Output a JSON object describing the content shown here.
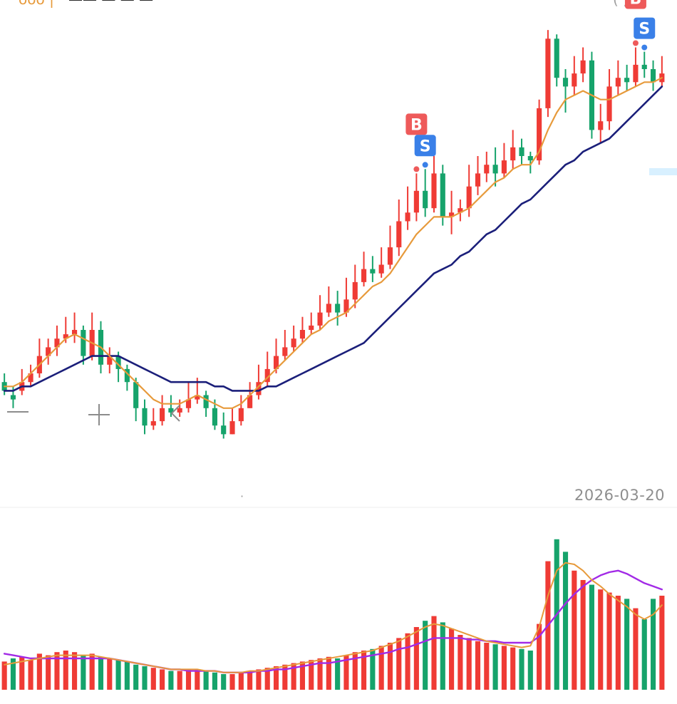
{
  "chart_data": [
    {
      "type": "candlestick",
      "xlabel": "",
      "ylabel": "",
      "x_axis_end_label": "2026-03-20",
      "ylim": [
        0,
        100
      ],
      "colors": {
        "up": "#ef3b35",
        "down": "#16a36b",
        "ma_short": "#e79a3b",
        "ma_long": "#1b1f7a",
        "buy_signal": "#ee5a5a",
        "sell_signal": "#3a80e8"
      },
      "series": [
        {
          "name": "candles",
          "ohlc": [
            [
              18,
              16,
              20,
              15
            ],
            [
              15,
              14,
              17,
              12
            ],
            [
              16,
              18,
              21,
              15
            ],
            [
              18,
              20,
              22,
              17
            ],
            [
              20,
              24,
              28,
              19
            ],
            [
              24,
              26,
              28,
              22
            ],
            [
              26,
              28,
              31,
              24
            ],
            [
              28,
              29,
              33,
              27
            ],
            [
              29,
              30,
              34,
              27
            ],
            [
              30,
              24,
              31,
              22
            ],
            [
              24,
              30,
              34,
              23
            ],
            [
              30,
              22,
              32,
              20
            ],
            [
              22,
              24,
              26,
              20
            ],
            [
              24,
              21,
              25,
              18
            ],
            [
              21,
              18,
              22,
              16
            ],
            [
              18,
              12,
              19,
              9
            ],
            [
              12,
              8,
              14,
              6
            ],
            [
              8,
              9,
              12,
              7
            ],
            [
              9,
              12,
              15,
              8
            ],
            [
              12,
              11,
              15,
              10
            ],
            [
              11,
              12,
              14,
              10
            ],
            [
              12,
              14,
              18,
              11
            ],
            [
              14,
              15,
              19,
              13
            ],
            [
              15,
              12,
              16,
              10
            ],
            [
              12,
              8,
              14,
              7
            ],
            [
              8,
              6,
              11,
              5
            ],
            [
              6,
              9,
              12,
              6
            ],
            [
              9,
              12,
              15,
              8
            ],
            [
              12,
              15,
              18,
              12
            ],
            [
              15,
              18,
              22,
              14
            ],
            [
              18,
              21,
              25,
              17
            ],
            [
              21,
              24,
              28,
              20
            ],
            [
              24,
              26,
              30,
              23
            ],
            [
              26,
              28,
              31,
              25
            ],
            [
              28,
              30,
              33,
              27
            ],
            [
              30,
              31,
              34,
              29
            ],
            [
              31,
              34,
              38,
              30
            ],
            [
              34,
              36,
              40,
              33
            ],
            [
              36,
              34,
              39,
              31
            ],
            [
              34,
              37,
              42,
              33
            ],
            [
              37,
              41,
              45,
              35
            ],
            [
              41,
              44,
              48,
              40
            ],
            [
              44,
              43,
              47,
              41
            ],
            [
              43,
              45,
              49,
              42
            ],
            [
              45,
              49,
              54,
              44
            ],
            [
              49,
              55,
              60,
              47
            ],
            [
              55,
              57,
              63,
              53
            ],
            [
              57,
              62,
              66,
              55
            ],
            [
              62,
              58,
              67,
              56
            ],
            [
              58,
              66,
              70,
              57
            ],
            [
              66,
              56,
              68,
              54
            ],
            [
              56,
              57,
              62,
              52
            ],
            [
              57,
              58,
              60,
              55
            ],
            [
              58,
              63,
              68,
              56
            ],
            [
              63,
              66,
              70,
              61
            ],
            [
              66,
              68,
              71,
              64
            ],
            [
              68,
              66,
              72,
              63
            ],
            [
              66,
              69,
              73,
              65
            ],
            [
              69,
              72,
              76,
              67
            ],
            [
              72,
              70,
              74,
              68
            ],
            [
              70,
              69,
              71,
              66
            ],
            [
              69,
              81,
              83,
              68
            ],
            [
              81,
              97,
              99,
              79
            ],
            [
              97,
              88,
              98,
              86
            ],
            [
              88,
              86,
              90,
              80
            ],
            [
              86,
              89,
              93,
              84
            ],
            [
              89,
              92,
              95,
              87
            ],
            [
              92,
              76,
              94,
              74
            ],
            [
              76,
              78,
              82,
              73
            ],
            [
              78,
              86,
              90,
              76
            ],
            [
              86,
              88,
              92,
              84
            ],
            [
              88,
              87,
              91,
              85
            ],
            [
              87,
              91,
              95,
              86
            ],
            [
              91,
              90,
              94,
              88
            ],
            [
              90,
              87,
              92,
              85
            ],
            [
              87,
              89,
              93,
              86
            ]
          ]
        },
        {
          "name": "ma_short",
          "values": [
            17,
            17,
            18,
            20,
            22,
            24,
            26,
            28,
            29,
            28,
            27,
            26,
            24,
            22,
            20,
            18,
            16,
            14,
            13,
            13,
            13,
            14,
            15,
            14,
            13,
            12,
            12,
            13,
            15,
            17,
            19,
            21,
            23,
            25,
            27,
            29,
            30,
            32,
            33,
            34,
            36,
            38,
            40,
            41,
            43,
            46,
            49,
            52,
            54,
            56,
            56,
            56,
            57,
            58,
            60,
            62,
            64,
            65,
            67,
            68,
            68,
            71,
            76,
            80,
            83,
            84,
            85,
            84,
            83,
            83,
            84,
            85,
            86,
            87,
            87,
            88
          ]
        },
        {
          "name": "ma_long",
          "values": [
            16,
            16,
            17,
            17,
            18,
            19,
            20,
            21,
            22,
            23,
            24,
            24,
            24,
            24,
            23,
            22,
            21,
            20,
            19,
            18,
            18,
            18,
            18,
            18,
            17,
            17,
            16,
            16,
            16,
            16,
            17,
            17,
            18,
            19,
            20,
            21,
            22,
            23,
            24,
            25,
            26,
            27,
            29,
            31,
            33,
            35,
            37,
            39,
            41,
            43,
            44,
            45,
            47,
            48,
            50,
            52,
            53,
            55,
            57,
            59,
            60,
            62,
            64,
            66,
            68,
            69,
            71,
            72,
            73,
            74,
            76,
            78,
            80,
            82,
            84,
            86
          ]
        }
      ],
      "signals": [
        {
          "label": "B",
          "index": 47,
          "kind": "buy"
        },
        {
          "label": "S",
          "index": 48,
          "kind": "sell"
        },
        {
          "label": "B",
          "index": 72,
          "kind": "buy"
        },
        {
          "label": "S",
          "index": 73,
          "kind": "sell"
        }
      ]
    },
    {
      "type": "bar",
      "xlabel": "",
      "ylabel": "",
      "ylim": [
        0,
        100
      ],
      "series": [
        {
          "name": "volume",
          "values": [
            18,
            20,
            21,
            19,
            23,
            22,
            24,
            25,
            24,
            22,
            23,
            21,
            20,
            19,
            18,
            16,
            15,
            14,
            13,
            12,
            12,
            13,
            13,
            12,
            11,
            10,
            10,
            11,
            12,
            13,
            14,
            15,
            16,
            17,
            18,
            19,
            20,
            21,
            20,
            22,
            24,
            25,
            26,
            28,
            30,
            33,
            36,
            40,
            44,
            47,
            43,
            39,
            35,
            33,
            31,
            30,
            29,
            28,
            27,
            26,
            25,
            42,
            82,
            96,
            88,
            76,
            70,
            67,
            64,
            62,
            60,
            58,
            52,
            45,
            58,
            60
          ],
          "up": [
            1,
            0,
            1,
            1,
            1,
            1,
            1,
            1,
            1,
            0,
            1,
            0,
            1,
            0,
            0,
            0,
            0,
            1,
            1,
            0,
            1,
            1,
            1,
            0,
            0,
            0,
            1,
            1,
            1,
            1,
            1,
            1,
            1,
            1,
            1,
            1,
            1,
            1,
            0,
            1,
            1,
            1,
            0,
            1,
            1,
            1,
            1,
            1,
            0,
            1,
            0,
            1,
            1,
            1,
            1,
            1,
            0,
            1,
            1,
            0,
            0,
            1,
            1,
            0,
            0,
            1,
            1,
            0,
            1,
            1,
            1,
            0,
            1,
            0,
            0,
            1
          ]
        },
        {
          "name": "vol_ma_short",
          "values": [
            16,
            17,
            18,
            19,
            20,
            21,
            22,
            22,
            22,
            22,
            22,
            21,
            20,
            19,
            18,
            17,
            16,
            15,
            14,
            13,
            13,
            13,
            13,
            12,
            12,
            11,
            11,
            11,
            12,
            12,
            13,
            14,
            15,
            16,
            17,
            18,
            19,
            20,
            21,
            22,
            23,
            24,
            25,
            27,
            29,
            31,
            34,
            37,
            40,
            42,
            41,
            39,
            37,
            35,
            33,
            31,
            30,
            29,
            28,
            27,
            28,
            40,
            60,
            76,
            81,
            80,
            76,
            70,
            66,
            61,
            57,
            53,
            48,
            45,
            48,
            54
          ]
        },
        {
          "name": "vol_ma_long",
          "values": [
            23,
            22,
            21,
            20,
            20,
            20,
            20,
            20,
            20,
            20,
            20,
            20,
            20,
            19,
            18,
            17,
            16,
            15,
            14,
            13,
            13,
            12,
            12,
            12,
            12,
            11,
            11,
            11,
            11,
            12,
            12,
            13,
            13,
            14,
            15,
            16,
            17,
            17,
            18,
            19,
            20,
            21,
            22,
            23,
            24,
            26,
            27,
            29,
            31,
            33,
            33,
            33,
            33,
            32,
            32,
            31,
            31,
            30,
            30,
            30,
            30,
            34,
            41,
            48,
            55,
            61,
            66,
            70,
            73,
            75,
            76,
            74,
            71,
            68,
            66,
            64
          ]
        }
      ]
    }
  ]
}
